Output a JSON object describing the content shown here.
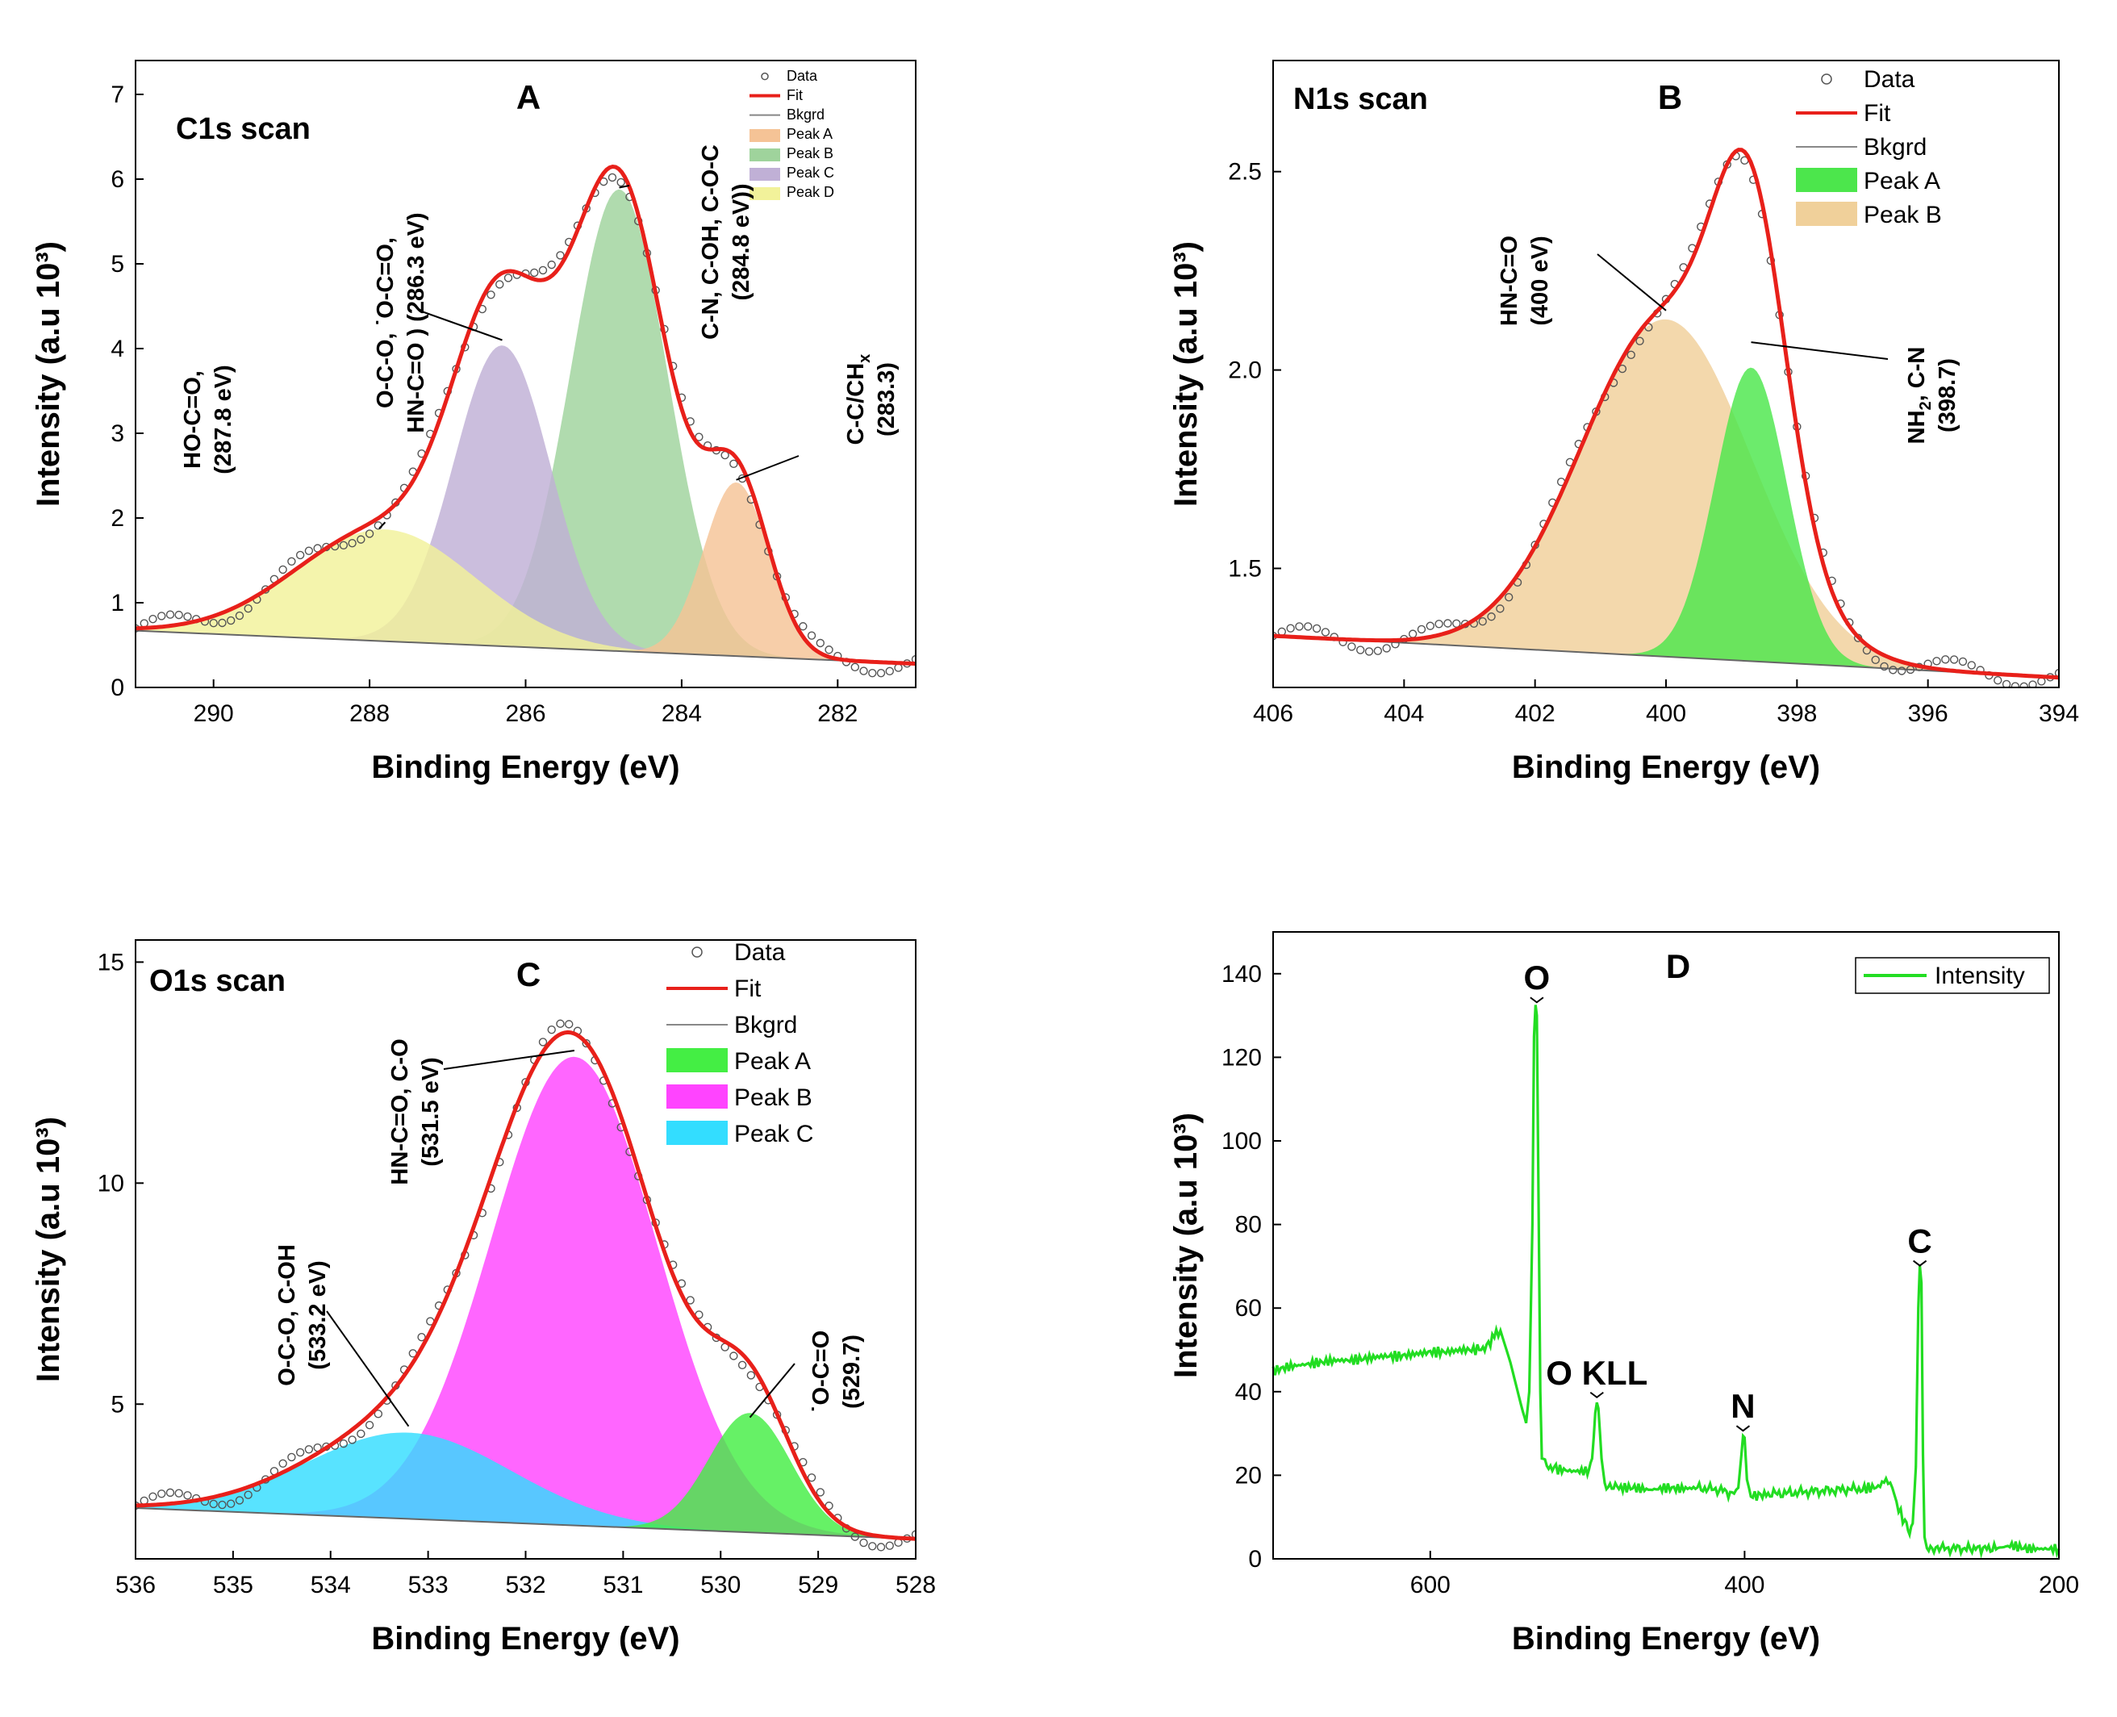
{
  "chart_data": [
    {
      "id": "A",
      "type": "area",
      "panel_label": "A",
      "title": "C1s scan",
      "xlabel": "Binding Energy (eV)",
      "ylabel": "Intensity (a.u 10³)",
      "xlim": [
        291,
        281
      ],
      "ylim": [
        0,
        7.4
      ],
      "xticks": [
        290,
        288,
        286,
        284,
        282
      ],
      "yticks": [
        0,
        1,
        2,
        3,
        4,
        5,
        6,
        7
      ],
      "background": {
        "start": 0.67,
        "end": 0.28
      },
      "peaks": [
        {
          "name": "Peak A",
          "center": 283.3,
          "height": 2.05,
          "sigma": 0.42,
          "color": "#f5c396"
        },
        {
          "name": "Peak B",
          "center": 284.8,
          "height": 5.45,
          "sigma": 0.62,
          "color": "#9fd39c"
        },
        {
          "name": "Peak C",
          "center": 286.3,
          "height": 3.55,
          "sigma": 0.62,
          "color": "#c0b0d6"
        },
        {
          "name": "Peak D",
          "center": 287.8,
          "height": 1.32,
          "sigma": 1.15,
          "color": "#f2f29a"
        }
      ],
      "legend": [
        "Data",
        "Fit",
        "Bkgrd",
        "Peak A",
        "Peak B",
        "Peak C",
        "Peak D"
      ],
      "annotations": [
        {
          "lines": [
            "HO-C=O,",
            "(287.8 eV)"
          ],
          "target": [
            287.8,
            1.95
          ]
        },
        {
          "lines": [
            "O-C-O, ˙O-C=O,",
            "HN-C=O ) (286.3 eV)"
          ],
          "target": [
            286.3,
            4.1
          ]
        },
        {
          "lines": [
            "C-N, C-OH, C-O-C",
            "(284.8 eV))"
          ],
          "target": [
            284.8,
            5.9
          ]
        },
        {
          "lines": [
            "C-C/CH",
            "(283.3)"
          ],
          "sub": "x",
          "target": [
            283.3,
            2.45
          ]
        }
      ]
    },
    {
      "id": "B",
      "type": "area",
      "panel_label": "B",
      "title": "N1s scan",
      "xlabel": "Binding Energy (eV)",
      "ylabel": "Intensity (a.u 10³)",
      "xlim": [
        406,
        394
      ],
      "ylim": [
        1.2,
        2.78
      ],
      "xticks": [
        406,
        404,
        402,
        400,
        398,
        396,
        394
      ],
      "yticks": [
        1.5,
        2.0,
        2.5
      ],
      "ytick_labels": [
        "1.5",
        "2.0",
        "2.5"
      ],
      "background": {
        "start": 1.33,
        "end": 1.225
      },
      "peaks": [
        {
          "name": "Peak A",
          "center": 398.7,
          "height": 0.74,
          "sigma": 0.55,
          "color": "#4ce64c"
        },
        {
          "name": "Peak B",
          "center": 400.0,
          "height": 0.85,
          "sigma": 1.3,
          "color": "#f0d09a"
        }
      ],
      "legend": [
        "Data",
        "Fit",
        "Bkgrd",
        "Peak A",
        "Peak B"
      ],
      "annotations": [
        {
          "lines": [
            "HN-C=O",
            "(400 eV)"
          ],
          "target": [
            400.0,
            2.15
          ]
        },
        {
          "lines": [
            "NH",
            ", C-N",
            "(398.7)"
          ],
          "sub": "2",
          "target": [
            398.7,
            2.07
          ]
        }
      ]
    },
    {
      "id": "C",
      "type": "area",
      "panel_label": "C",
      "title": "O1s scan",
      "xlabel": "Binding Energy (eV)",
      "ylabel": "Intensity (a.u 10³)",
      "xlim": [
        536,
        528
      ],
      "ylim": [
        1.5,
        15.5
      ],
      "xticks": [
        536,
        535,
        534,
        533,
        532,
        531,
        530,
        529,
        528
      ],
      "yticks": [
        5,
        10,
        15
      ],
      "background": {
        "start": 2.65,
        "end": 1.95
      },
      "peaks": [
        {
          "name": "Peak A",
          "center": 529.7,
          "height": 2.7,
          "sigma": 0.42,
          "color": "#44ee44"
        },
        {
          "name": "Peak B",
          "center": 531.5,
          "height": 10.6,
          "sigma": 0.85,
          "color": "#ff44ff"
        },
        {
          "name": "Peak C",
          "center": 533.2,
          "height": 1.95,
          "sigma": 1.05,
          "color": "#33ddff"
        }
      ],
      "legend": [
        "Data",
        "Fit",
        "Bkgrd",
        "Peak A",
        "Peak B",
        "Peak C"
      ],
      "annotations": [
        {
          "lines": [
            "O-C-O, C-OH",
            "(533.2 eV)"
          ],
          "target": [
            533.2,
            4.5
          ]
        },
        {
          "lines": [
            "HN-C=O, C-O",
            "(531.5 eV)"
          ],
          "target": [
            531.5,
            13.0
          ]
        },
        {
          "lines": [
            "˙O-C=O",
            "(529.7)"
          ],
          "target": [
            529.7,
            4.7
          ]
        }
      ]
    },
    {
      "id": "D",
      "type": "line",
      "panel_label": "D",
      "title": "",
      "xlabel": "Binding Energy (eV)",
      "ylabel": "Intensity (a.u 10³)",
      "xlim": [
        700,
        200
      ],
      "ylim": [
        0,
        150
      ],
      "xticks": [
        600,
        400,
        200
      ],
      "yticks": [
        0,
        20,
        40,
        60,
        80,
        100,
        120,
        140
      ],
      "series": [
        {
          "name": "Intensity",
          "color": "#22dd22",
          "points": [
            [
              700,
              45
            ],
            [
              690,
              46
            ],
            [
              680,
              46.5
            ],
            [
              670,
              47
            ],
            [
              660,
              47.5
            ],
            [
              650,
              47.5
            ],
            [
              640,
              48
            ],
            [
              630,
              48.5
            ],
            [
              620,
              48.5
            ],
            [
              610,
              49
            ],
            [
              600,
              49.5
            ],
            [
              590,
              49.5
            ],
            [
              580,
              50
            ],
            [
              570,
              50
            ],
            [
              563,
              51
            ],
            [
              558,
              54.5
            ],
            [
              554,
              53
            ],
            [
              549,
              47
            ],
            [
              545,
              41
            ],
            [
              541,
              35
            ],
            [
              539,
              32.5
            ],
            [
              537,
              40
            ],
            [
              535,
              80
            ],
            [
              534,
              125
            ],
            [
              533,
              132
            ],
            [
              532.2,
              130
            ],
            [
              531,
              82
            ],
            [
              530,
              40
            ],
            [
              529,
              25
            ],
            [
              527,
              22.5
            ],
            [
              520,
              21.5
            ],
            [
              510,
              21
            ],
            [
              500,
              21
            ],
            [
              497,
              24
            ],
            [
              495,
              34
            ],
            [
              494,
              37.5
            ],
            [
              493,
              36
            ],
            [
              491,
              24
            ],
            [
              489,
              18
            ],
            [
              480,
              17
            ],
            [
              470,
              17
            ],
            [
              460,
              16.5
            ],
            [
              450,
              17
            ],
            [
              440,
              16.8
            ],
            [
              430,
              17
            ],
            [
              415,
              16.5
            ],
            [
              408,
              15.5
            ],
            [
              404,
              17
            ],
            [
              402,
              25
            ],
            [
              401,
              29.5
            ],
            [
              400,
              29
            ],
            [
              398.5,
              19
            ],
            [
              396,
              15
            ],
            [
              385,
              15.5
            ],
            [
              370,
              15.8
            ],
            [
              355,
              16.2
            ],
            [
              340,
              16.5
            ],
            [
              325,
              16.8
            ],
            [
              315,
              17.2
            ],
            [
              310,
              19
            ],
            [
              306,
              17
            ],
            [
              302,
              12
            ],
            [
              298,
              8.5
            ],
            [
              295,
              7
            ],
            [
              293,
              8.5
            ],
            [
              291,
              22
            ],
            [
              289.5,
              60
            ],
            [
              288.5,
              69
            ],
            [
              287.5,
              66
            ],
            [
              286.5,
              25
            ],
            [
              285.5,
              6
            ],
            [
              284,
              3
            ],
            [
              275,
              2.5
            ],
            [
              260,
              2.5
            ],
            [
              240,
              2.5
            ],
            [
              230,
              3.2
            ],
            [
              220,
              2.4
            ],
            [
              210,
              2.4
            ],
            [
              200,
              2.4
            ]
          ]
        }
      ],
      "legend": [
        "Intensity"
      ],
      "peak_labels": [
        {
          "text": "O",
          "x": 532.2,
          "y": 132
        },
        {
          "text": "O KLL",
          "x": 494,
          "y": 37.5
        },
        {
          "text": "N",
          "x": 401,
          "y": 29.5
        },
        {
          "text": "C",
          "x": 288.5,
          "y": 69
        }
      ]
    }
  ]
}
